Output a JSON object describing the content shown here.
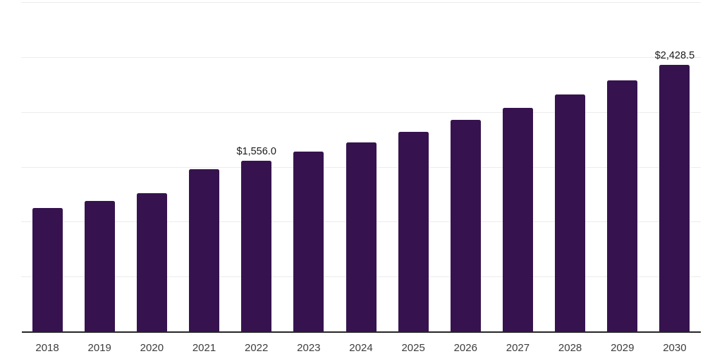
{
  "chart_data": {
    "type": "bar",
    "title": "",
    "xlabel": "",
    "ylabel": "",
    "categories": [
      "2018",
      "2019",
      "2020",
      "2021",
      "2022",
      "2023",
      "2024",
      "2025",
      "2026",
      "2027",
      "2028",
      "2029",
      "2030"
    ],
    "values": [
      1125.0,
      1190.0,
      1259.0,
      1476.0,
      1556.0,
      1636.0,
      1720.0,
      1821.0,
      1924.0,
      2039.0,
      2160.0,
      2288.0,
      2428.5
    ],
    "data_labels": {
      "2022": "$1,556.0",
      "2030": "$2,428.5"
    },
    "ylim": [
      0,
      3000
    ],
    "gridline_step": 500,
    "grid": true,
    "legend": false,
    "colors": {
      "bar": "#36134e",
      "grid": "#ececec",
      "axis": "#262626",
      "tick_label": "#3d3d3d",
      "data_label": "#1a1a1a",
      "background": "#ffffff"
    }
  }
}
